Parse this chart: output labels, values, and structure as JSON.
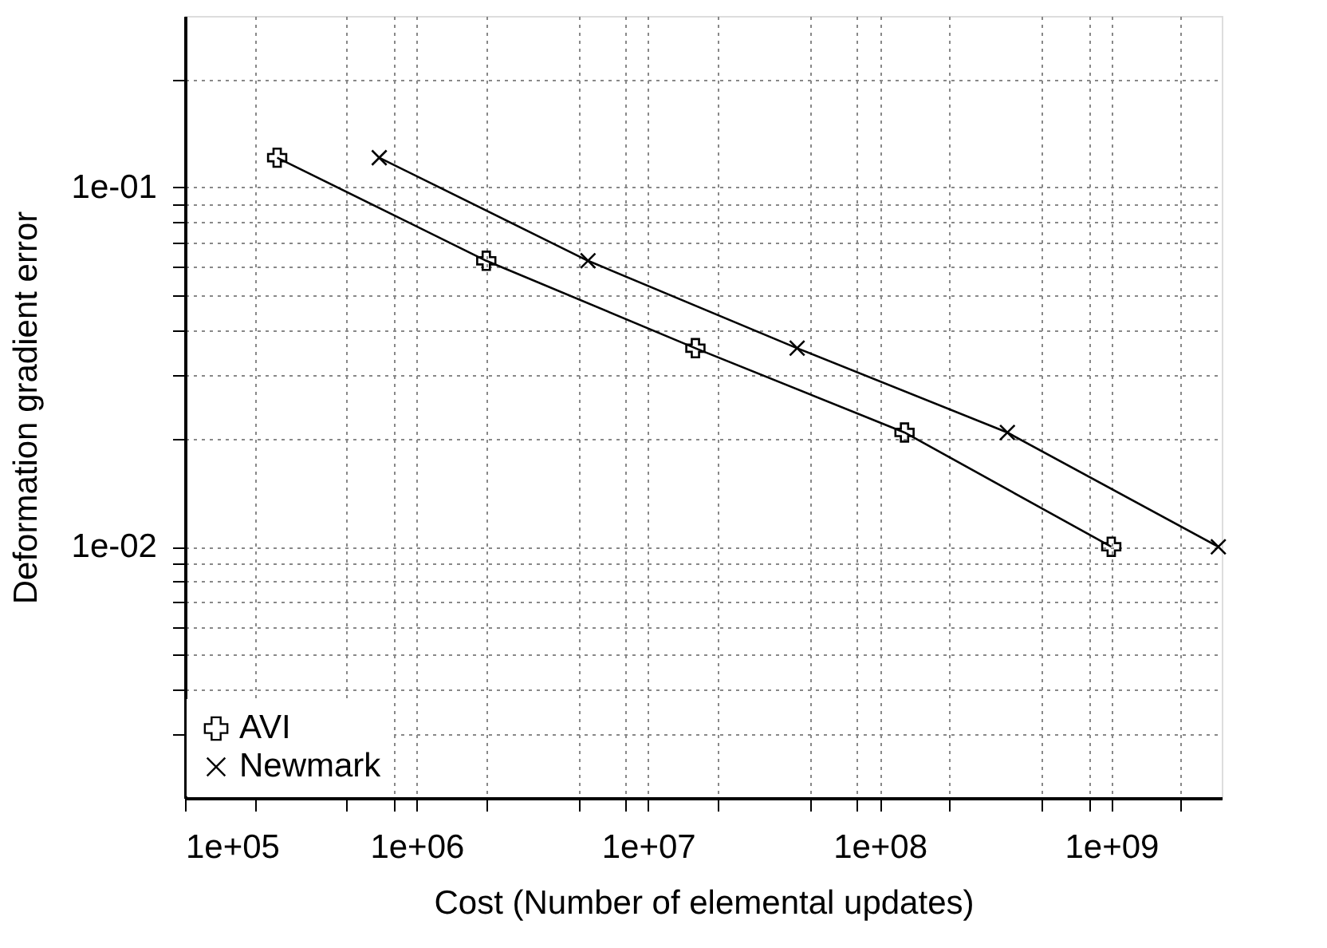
{
  "chart_data": {
    "type": "line",
    "xlabel": "Cost (Number of elemental updates)",
    "ylabel": "Deformation gradient error",
    "log": "xy",
    "grid": true,
    "legend": "bottom left",
    "xlim": [
      100000,
      3000000000
    ],
    "ylim": [
      0.002,
      0.3
    ],
    "xticks": [
      {
        "value": 100000,
        "label": "1e+05"
      },
      {
        "value": 200000,
        "label": null
      },
      {
        "value": 500000,
        "label": null
      },
      {
        "value": 800000,
        "label": null
      },
      {
        "value": 1000000,
        "label": "1e+06"
      },
      {
        "value": 2000000,
        "label": null
      },
      {
        "value": 5000000,
        "label": null
      },
      {
        "value": 8000000,
        "label": null
      },
      {
        "value": 10000000,
        "label": "1e+07"
      },
      {
        "value": 20000000,
        "label": null
      },
      {
        "value": 50000000,
        "label": null
      },
      {
        "value": 80000000,
        "label": null
      },
      {
        "value": 100000000,
        "label": "1e+08"
      },
      {
        "value": 200000000,
        "label": null
      },
      {
        "value": 500000000,
        "label": null
      },
      {
        "value": 800000000,
        "label": null
      },
      {
        "value": 1000000000,
        "label": "1e+09"
      },
      {
        "value": 2000000000,
        "label": null
      }
    ],
    "yticks": [
      {
        "value": 0.003,
        "label": null
      },
      {
        "value": 0.004,
        "label": null
      },
      {
        "value": 0.005,
        "label": null
      },
      {
        "value": 0.006,
        "label": null
      },
      {
        "value": 0.007,
        "label": null
      },
      {
        "value": 0.008,
        "label": null
      },
      {
        "value": 0.009,
        "label": null
      },
      {
        "value": 0.01,
        "label": "1e-02"
      },
      {
        "value": 0.02,
        "label": null
      },
      {
        "value": 0.03,
        "label": null
      },
      {
        "value": 0.04,
        "label": null
      },
      {
        "value": 0.05,
        "label": null
      },
      {
        "value": 0.06,
        "label": null
      },
      {
        "value": 0.07,
        "label": null
      },
      {
        "value": 0.08,
        "label": null
      },
      {
        "value": 0.09,
        "label": null
      },
      {
        "value": 0.1,
        "label": "1e-01"
      },
      {
        "value": 0.2,
        "label": null
      }
    ],
    "series": [
      {
        "name": "AVI",
        "color": "#000000",
        "marker": "plus",
        "x": [
          250000,
          2000000,
          16000000,
          128000000,
          1000000000
        ],
        "values": [
          0.121,
          0.0625,
          0.0357,
          0.0208,
          0.01
        ]
      },
      {
        "name": "Newmark",
        "color": "#000000",
        "marker": "cross",
        "x": [
          690000,
          5500000,
          44000000,
          356000000,
          2900000000
        ],
        "values": [
          0.121,
          0.0625,
          0.0357,
          0.0208,
          0.01
        ]
      }
    ]
  }
}
